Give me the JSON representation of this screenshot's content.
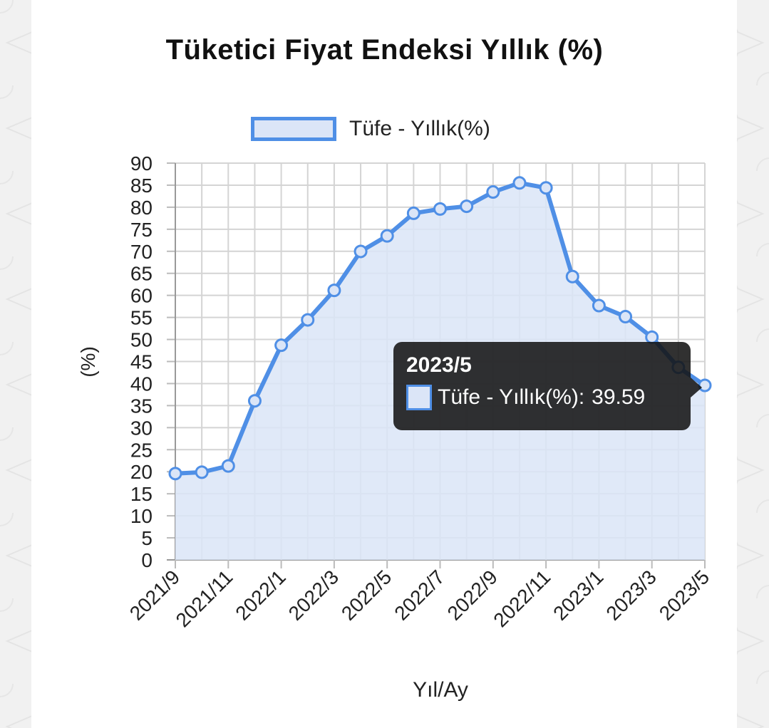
{
  "title": "Tüketici Fiyat Endeksi Yıllık (%)",
  "legend_label": "Tüfe - Yıllık(%)",
  "colors": {
    "line": "#4f8fe6",
    "fill": "#dbe5f7",
    "grid": "#d4d4d4"
  },
  "tooltip": {
    "title": "2023/5",
    "label": "Tüfe - Yıllık(%):",
    "value": "39.59"
  },
  "chart_data": {
    "type": "area",
    "title": "Tüketici Fiyat Endeksi Yıllık (%)",
    "xlabel": "Yıl/Ay",
    "ylabel": "(%)",
    "ylim": [
      0,
      90
    ],
    "ytick_step": 5,
    "grid": true,
    "legend_position": "top",
    "x": [
      "2021/9",
      "2021/10",
      "2021/11",
      "2021/12",
      "2022/1",
      "2022/2",
      "2022/3",
      "2022/4",
      "2022/5",
      "2022/6",
      "2022/7",
      "2022/8",
      "2022/9",
      "2022/10",
      "2022/11",
      "2022/12",
      "2023/1",
      "2023/2",
      "2023/3",
      "2023/4",
      "2023/5"
    ],
    "xtick_labels": [
      "2021/9",
      "2021/11",
      "2022/1",
      "2022/3",
      "2022/5",
      "2022/7",
      "2022/9",
      "2022/11",
      "2023/1",
      "2023/3",
      "2023/5"
    ],
    "series": [
      {
        "name": "Tüfe - Yıllık(%)",
        "values": [
          19.58,
          19.89,
          21.31,
          36.08,
          48.69,
          54.44,
          61.14,
          69.97,
          73.5,
          78.62,
          79.6,
          80.21,
          83.45,
          85.51,
          84.39,
          64.27,
          57.68,
          55.18,
          50.51,
          43.68,
          39.59
        ]
      }
    ]
  }
}
